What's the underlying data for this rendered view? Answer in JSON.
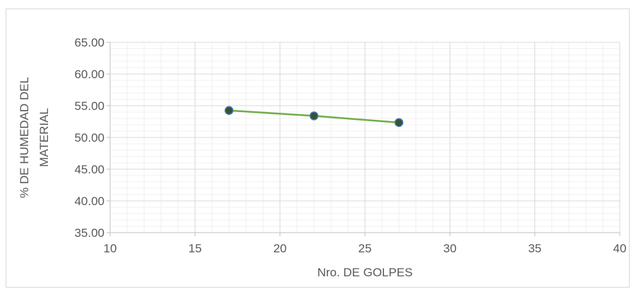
{
  "chart_data": {
    "type": "scatter",
    "title": "",
    "xlabel": "Nro. DE GOLPES",
    "ylabel_lines": [
      "% DE HUMEDAD DEL",
      "MATERIAL"
    ],
    "xlim": [
      10,
      40
    ],
    "ylim": [
      35,
      65
    ],
    "x_ticks": [
      10,
      15,
      20,
      25,
      30,
      35,
      40
    ],
    "y_ticks": [
      35,
      40,
      45,
      50,
      55,
      60,
      65
    ],
    "x_tick_labels": [
      "10",
      "15",
      "20",
      "25",
      "30",
      "35",
      "40"
    ],
    "y_tick_labels": [
      "35.00",
      "40.00",
      "45.00",
      "50.00",
      "55.00",
      "60.00",
      "65.00"
    ],
    "x_minor_step": 1,
    "y_minor_step": 1,
    "grid": true,
    "legend": "none",
    "series": [
      {
        "x": [
          17,
          22,
          27
        ],
        "y": [
          54.25,
          53.4,
          52.35
        ],
        "line_color": "#70ad47",
        "marker_fill": "#375623",
        "marker_edge": "#4472c4"
      }
    ]
  }
}
